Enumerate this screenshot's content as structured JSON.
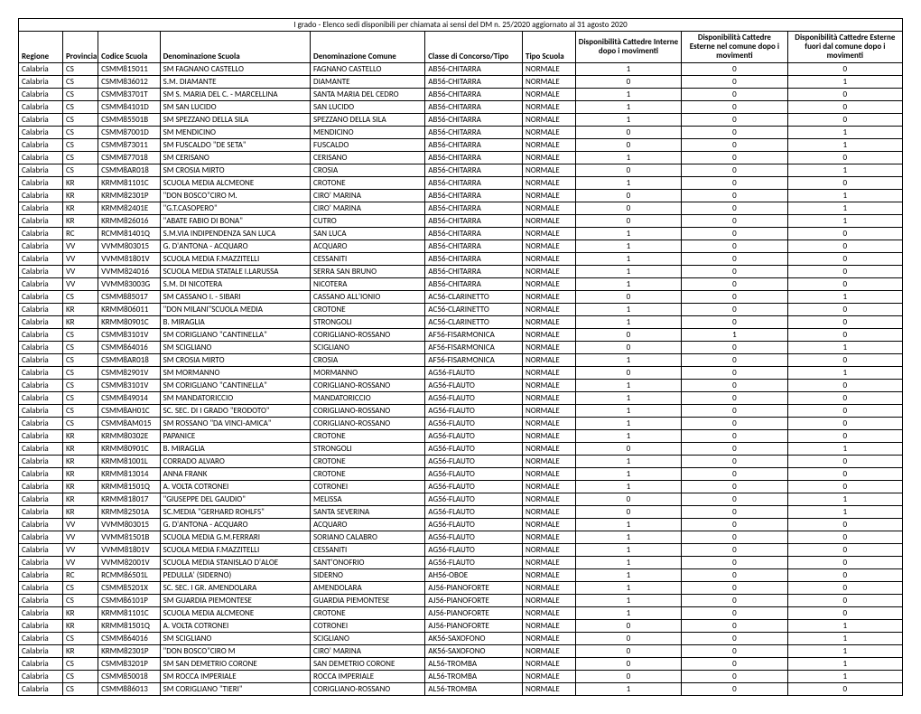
{
  "title": "I grado - Elenco sedi disponibili per chiamata ai sensi del DM n. 25/2020 aggiornato al 31 agosto 2020",
  "columns": [
    "Regione",
    "Provincia",
    "Codice Scuola",
    "Denominazione Scuola",
    "Denominazione Comune",
    "Classe di Concorso/Tipo",
    "Tipo Scuola",
    "Disponibilità Cattedre Interne dopo i movimenti",
    "Disponibilità Cattedre Esterne nel comune dopo i movimenti",
    "Disponibilità Cattedre Esterne fuori dal comune dopo i movimenti"
  ],
  "rows": [
    [
      "Calabria",
      "CS",
      "CSMM815011",
      "SM FAGNANO CASTELLO",
      "FAGNANO CASTELLO",
      "AB56-CHITARRA",
      "NORMALE",
      "1",
      "0",
      "0"
    ],
    [
      "Calabria",
      "CS",
      "CSMM836012",
      "S.M. DIAMANTE",
      "DIAMANTE",
      "AB56-CHITARRA",
      "NORMALE",
      "0",
      "0",
      "1"
    ],
    [
      "Calabria",
      "CS",
      "CSMM83701T",
      "SM S. MARIA DEL C. - MARCELLINA",
      "SANTA MARIA DEL CEDRO",
      "AB56-CHITARRA",
      "NORMALE",
      "1",
      "0",
      "0"
    ],
    [
      "Calabria",
      "CS",
      "CSMM84101D",
      "SM SAN LUCIDO",
      "SAN LUCIDO",
      "AB56-CHITARRA",
      "NORMALE",
      "1",
      "0",
      "0"
    ],
    [
      "Calabria",
      "CS",
      "CSMM85501B",
      "SM SPEZZANO DELLA SILA",
      "SPEZZANO DELLA SILA",
      "AB56-CHITARRA",
      "NORMALE",
      "1",
      "0",
      "0"
    ],
    [
      "Calabria",
      "CS",
      "CSMM87001D",
      "SM MENDICINO",
      "MENDICINO",
      "AB56-CHITARRA",
      "NORMALE",
      "0",
      "0",
      "1"
    ],
    [
      "Calabria",
      "CS",
      "CSMM873011",
      "SM  FUSCALDO  \"DE SETA\"",
      "FUSCALDO",
      "AB56-CHITARRA",
      "NORMALE",
      "0",
      "0",
      "1"
    ],
    [
      "Calabria",
      "CS",
      "CSMM877018",
      "SM   CERISANO",
      "CERISANO",
      "AB56-CHITARRA",
      "NORMALE",
      "1",
      "0",
      "0"
    ],
    [
      "Calabria",
      "CS",
      "CSMM8AR018",
      "SM  CROSIA  MIRTO",
      "CROSIA",
      "AB56-CHITARRA",
      "NORMALE",
      "0",
      "0",
      "1"
    ],
    [
      "Calabria",
      "KR",
      "KRMM81101C",
      "SCUOLA MEDIA ALCMEONE",
      "CROTONE",
      "AB56-CHITARRA",
      "NORMALE",
      "1",
      "0",
      "0"
    ],
    [
      "Calabria",
      "KR",
      "KRMM82301P",
      "\"DON BOSCO\"CIRO M.",
      "CIRO' MARINA",
      "AB56-CHITARRA",
      "NORMALE",
      "0",
      "0",
      "1"
    ],
    [
      "Calabria",
      "KR",
      "KRMM82401E",
      "\"G.T.CASOPERO\"",
      "CIRO' MARINA",
      "AB56-CHITARRA",
      "NORMALE",
      "0",
      "0",
      "1"
    ],
    [
      "Calabria",
      "KR",
      "KRMM826016",
      "\"ABATE FABIO DI BONA\"",
      "CUTRO",
      "AB56-CHITARRA",
      "NORMALE",
      "0",
      "0",
      "1"
    ],
    [
      "Calabria",
      "RC",
      "RCMM81401Q",
      "S.M.VIA INDIPENDENZA  SAN LUCA",
      "SAN LUCA",
      "AB56-CHITARRA",
      "NORMALE",
      "1",
      "0",
      "0"
    ],
    [
      "Calabria",
      "VV",
      "VVMM803015",
      "G. D'ANTONA  - ACQUARO",
      "ACQUARO",
      "AB56-CHITARRA",
      "NORMALE",
      "1",
      "0",
      "0"
    ],
    [
      "Calabria",
      "VV",
      "VVMM81801V",
      "SCUOLA MEDIA F.MAZZITELLI",
      "CESSANITI",
      "AB56-CHITARRA",
      "NORMALE",
      "1",
      "0",
      "0"
    ],
    [
      "Calabria",
      "VV",
      "VVMM824016",
      "SCUOLA MEDIA STATALE  I.LARUSSA",
      "SERRA SAN BRUNO",
      "AB56-CHITARRA",
      "NORMALE",
      "1",
      "0",
      "0"
    ],
    [
      "Calabria",
      "VV",
      "VVMM83003G",
      "S.M. DI NICOTERA",
      "NICOTERA",
      "AB56-CHITARRA",
      "NORMALE",
      "1",
      "0",
      "0"
    ],
    [
      "Calabria",
      "CS",
      "CSMM885017",
      "SM CASSANO I. - SIBARI",
      "CASSANO ALL'IONIO",
      "AC56-CLARINETTO",
      "NORMALE",
      "0",
      "0",
      "1"
    ],
    [
      "Calabria",
      "KR",
      "KRMM806011",
      "\"DON MILANI\"SCUOLA MEDIA",
      "CROTONE",
      "AC56-CLARINETTO",
      "NORMALE",
      "1",
      "0",
      "0"
    ],
    [
      "Calabria",
      "KR",
      "KRMM80901C",
      "B. MIRAGLIA",
      "STRONGOLI",
      "AC56-CLARINETTO",
      "NORMALE",
      "1",
      "0",
      "0"
    ],
    [
      "Calabria",
      "CS",
      "CSMM83101V",
      "SM CORIGLIANO \"CANTINELLA\"",
      "CORIGLIANO-ROSSANO",
      "AF56-FISARMONICA",
      "NORMALE",
      "0",
      "1",
      "0"
    ],
    [
      "Calabria",
      "CS",
      "CSMM864016",
      "SM SCIGLIANO",
      "SCIGLIANO",
      "AF56-FISARMONICA",
      "NORMALE",
      "0",
      "0",
      "1"
    ],
    [
      "Calabria",
      "CS",
      "CSMM8AR018",
      "SM  CROSIA  MIRTO",
      "CROSIA",
      "AF56-FISARMONICA",
      "NORMALE",
      "1",
      "0",
      "0"
    ],
    [
      "Calabria",
      "CS",
      "CSMM82901V",
      "SM MORMANNO",
      "MORMANNO",
      "AG56-FLAUTO",
      "NORMALE",
      "0",
      "0",
      "1"
    ],
    [
      "Calabria",
      "CS",
      "CSMM83101V",
      "SM CORIGLIANO \"CANTINELLA\"",
      "CORIGLIANO-ROSSANO",
      "AG56-FLAUTO",
      "NORMALE",
      "1",
      "0",
      "0"
    ],
    [
      "Calabria",
      "CS",
      "CSMM849014",
      "SM MANDATORICCIO",
      "MANDATORICCIO",
      "AG56-FLAUTO",
      "NORMALE",
      "1",
      "0",
      "0"
    ],
    [
      "Calabria",
      "CS",
      "CSMM8AH01C",
      "SC. SEC. DI I GRADO \"ERODOTO\"",
      "CORIGLIANO-ROSSANO",
      "AG56-FLAUTO",
      "NORMALE",
      "1",
      "0",
      "0"
    ],
    [
      "Calabria",
      "CS",
      "CSMM8AM015",
      "SM  ROSSANO  \"DA VINCI-AMICA\"",
      "CORIGLIANO-ROSSANO",
      "AG56-FLAUTO",
      "NORMALE",
      "1",
      "0",
      "0"
    ],
    [
      "Calabria",
      "KR",
      "KRMM80302E",
      "PAPANICE",
      "CROTONE",
      "AG56-FLAUTO",
      "NORMALE",
      "1",
      "0",
      "0"
    ],
    [
      "Calabria",
      "KR",
      "KRMM80901C",
      "B. MIRAGLIA",
      "STRONGOLI",
      "AG56-FLAUTO",
      "NORMALE",
      "0",
      "0",
      "1"
    ],
    [
      "Calabria",
      "KR",
      "KRMM81001L",
      "CORRADO ALVARO",
      "CROTONE",
      "AG56-FLAUTO",
      "NORMALE",
      "1",
      "0",
      "0"
    ],
    [
      "Calabria",
      "KR",
      "KRMM813014",
      "ANNA FRANK",
      "CROTONE",
      "AG56-FLAUTO",
      "NORMALE",
      "1",
      "0",
      "0"
    ],
    [
      "Calabria",
      "KR",
      "KRMM81501Q",
      "A. VOLTA COTRONEI",
      "COTRONEI",
      "AG56-FLAUTO",
      "NORMALE",
      "1",
      "0",
      "0"
    ],
    [
      "Calabria",
      "KR",
      "KRMM818017",
      "\"GIUSEPPE DEL GAUDIO\"",
      "MELISSA",
      "AG56-FLAUTO",
      "NORMALE",
      "0",
      "0",
      "1"
    ],
    [
      "Calabria",
      "KR",
      "KRMM82501A",
      "SC.MEDIA \"GERHARD ROHLFS\"",
      "SANTA SEVERINA",
      "AG56-FLAUTO",
      "NORMALE",
      "0",
      "0",
      "1"
    ],
    [
      "Calabria",
      "VV",
      "VVMM803015",
      "G. D'ANTONA  - ACQUARO",
      "ACQUARO",
      "AG56-FLAUTO",
      "NORMALE",
      "1",
      "0",
      "0"
    ],
    [
      "Calabria",
      "VV",
      "VVMM81501B",
      "SCUOLA MEDIA G.M.FERRARI",
      "SORIANO CALABRO",
      "AG56-FLAUTO",
      "NORMALE",
      "1",
      "0",
      "0"
    ],
    [
      "Calabria",
      "VV",
      "VVMM81801V",
      "SCUOLA MEDIA F.MAZZITELLI",
      "CESSANITI",
      "AG56-FLAUTO",
      "NORMALE",
      "1",
      "0",
      "0"
    ],
    [
      "Calabria",
      "VV",
      "VVMM82001V",
      "SCUOLA MEDIA STANISLAO D'ALOE",
      "SANT'ONOFRIO",
      "AG56-FLAUTO",
      "NORMALE",
      "1",
      "0",
      "0"
    ],
    [
      "Calabria",
      "RC",
      "RCMM86501L",
      "PEDULLA'  (SIDERNO)",
      "SIDERNO",
      "AH56-OBOE",
      "NORMALE",
      "1",
      "0",
      "0"
    ],
    [
      "Calabria",
      "CS",
      "CSMM85201X",
      "SC. SEC. I GR. AMENDOLARA",
      "AMENDOLARA",
      "AJ56-PIANOFORTE",
      "NORMALE",
      "1",
      "0",
      "0"
    ],
    [
      "Calabria",
      "CS",
      "CSMM86101P",
      "SM GUARDIA PIEMONTESE",
      "GUARDIA PIEMONTESE",
      "AJ56-PIANOFORTE",
      "NORMALE",
      "1",
      "0",
      "0"
    ],
    [
      "Calabria",
      "KR",
      "KRMM81101C",
      "SCUOLA MEDIA ALCMEONE",
      "CROTONE",
      "AJ56-PIANOFORTE",
      "NORMALE",
      "1",
      "0",
      "0"
    ],
    [
      "Calabria",
      "KR",
      "KRMM81501Q",
      "A. VOLTA COTRONEI",
      "COTRONEI",
      "AJ56-PIANOFORTE",
      "NORMALE",
      "0",
      "0",
      "1"
    ],
    [
      "Calabria",
      "CS",
      "CSMM864016",
      "SM SCIGLIANO",
      "SCIGLIANO",
      "AK56-SAXOFONO",
      "NORMALE",
      "0",
      "0",
      "1"
    ],
    [
      "Calabria",
      "KR",
      "KRMM82301P",
      "\"DON BOSCO\"CIRO M",
      "CIRO' MARINA",
      "AK56-SAXOFONO",
      "NORMALE",
      "0",
      "0",
      "1"
    ],
    [
      "Calabria",
      "CS",
      "CSMM83201P",
      "SM SAN DEMETRIO CORONE",
      "SAN DEMETRIO CORONE",
      "AL56-TROMBA",
      "NORMALE",
      "0",
      "0",
      "1"
    ],
    [
      "Calabria",
      "CS",
      "CSMM850018",
      "SM ROCCA IMPERIALE",
      "ROCCA IMPERIALE",
      "AL56-TROMBA",
      "NORMALE",
      "0",
      "0",
      "1"
    ],
    [
      "Calabria",
      "CS",
      "CSMM886013",
      "SM  CORIGLIANO  \"TIERI\"",
      "CORIGLIANO-ROSSANO",
      "AL56-TROMBA",
      "NORMALE",
      "1",
      "0",
      "0"
    ]
  ]
}
